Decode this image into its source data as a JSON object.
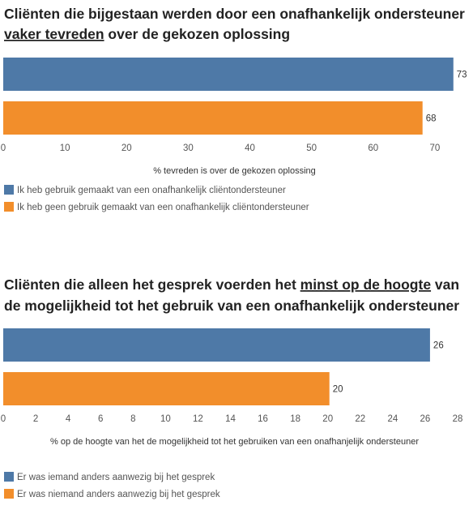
{
  "chart_data": [
    {
      "type": "bar",
      "orientation": "horizontal",
      "title_parts": [
        {
          "text": "Cliënten die bijgestaan werden door een onafhankelijk ondersteuner",
          "underline": false
        },
        {
          "text": "vaker tevreden",
          "underline": true
        },
        {
          "text": " over de gekozen oplossing",
          "underline": false
        }
      ],
      "xlabel": "% tevreden is over de gekozen oplossing",
      "xlim": [
        0,
        75
      ],
      "xticks": [
        0,
        10,
        20,
        30,
        40,
        50,
        60,
        70
      ],
      "series": [
        {
          "name": "Ik heb gebruik gemaakt van een onafhankelijk cliëntondersteuner",
          "value": 73,
          "label": "73",
          "color": "#4e79a7"
        },
        {
          "name": "Ik heb geen gebruik gemaakt van een onafhankelijk cliëntondersteuner",
          "value": 68,
          "label": "68",
          "color": "#f28e2b"
        }
      ],
      "grid": false,
      "legend_position": "bottom-left"
    },
    {
      "type": "bar",
      "orientation": "horizontal",
      "title_parts": [
        {
          "text": "Cliënten die alleen het gesprek voerden het ",
          "underline": false
        },
        {
          "text": "minst op de hoogte",
          "underline": true
        },
        {
          "text": " van",
          "underline": false
        },
        {
          "text": "de mogelijkheid tot het gebruik van een onafhankelijk ondersteuner",
          "underline": false
        }
      ],
      "xlabel": "% op de hoogte van het de mogelijkheid tot het gebruiken van een onafhanjelijk ondersteuner",
      "xlim": [
        0,
        28.5
      ],
      "xticks": [
        0,
        2,
        4,
        6,
        8,
        10,
        12,
        14,
        16,
        18,
        20,
        22,
        24,
        26,
        28
      ],
      "series": [
        {
          "name": "Er was iemand anders aanwezig bij het gesprek",
          "value": 26.3,
          "label": "26",
          "color": "#4e79a7"
        },
        {
          "name": "Er was niemand anders aanwezig bij het gesprek",
          "value": 20.1,
          "label": "20",
          "color": "#f28e2b"
        }
      ],
      "grid": false,
      "legend_position": "bottom-left"
    }
  ]
}
